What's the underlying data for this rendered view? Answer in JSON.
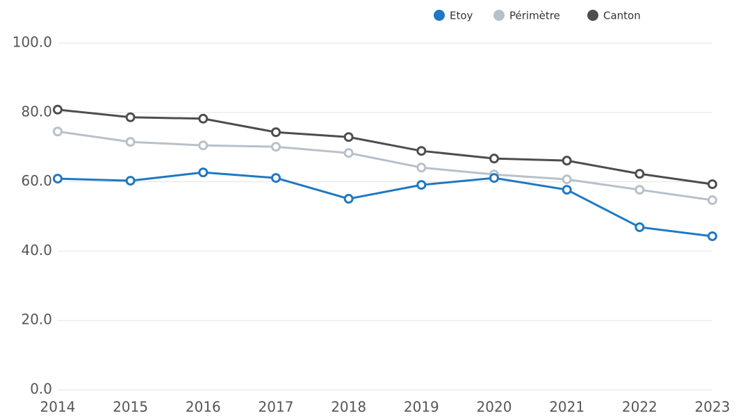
{
  "chart_data": {
    "type": "line",
    "categories": [
      "2014",
      "2015",
      "2016",
      "2017",
      "2018",
      "2019",
      "2020",
      "2021",
      "2022",
      "2023"
    ],
    "series": [
      {
        "name": "Etoy",
        "color": "#1f78c1",
        "values": [
          60.9,
          60.3,
          62.7,
          61.1,
          55.1,
          59.1,
          61.1,
          57.7,
          46.9,
          44.3
        ]
      },
      {
        "name": "Périmètre",
        "color": "#b8c0c8",
        "values": [
          74.5,
          71.5,
          70.5,
          70.1,
          68.3,
          64.1,
          62.1,
          60.7,
          57.7,
          54.7
        ]
      },
      {
        "name": "Canton",
        "color": "#4d4d4d",
        "values": [
          80.8,
          78.6,
          78.2,
          74.3,
          72.9,
          68.9,
          66.7,
          66.1,
          62.3,
          59.3
        ]
      }
    ],
    "ylim": [
      0,
      100
    ],
    "yticks": [
      {
        "value": 0,
        "label": "0.0"
      },
      {
        "value": 20,
        "label": "20.0"
      },
      {
        "value": 40,
        "label": "40.0"
      },
      {
        "value": 60,
        "label": "60.0"
      },
      {
        "value": 80,
        "label": "80.0"
      },
      {
        "value": 100,
        "label": "100.0"
      }
    ],
    "grid": true,
    "legend": "top"
  }
}
